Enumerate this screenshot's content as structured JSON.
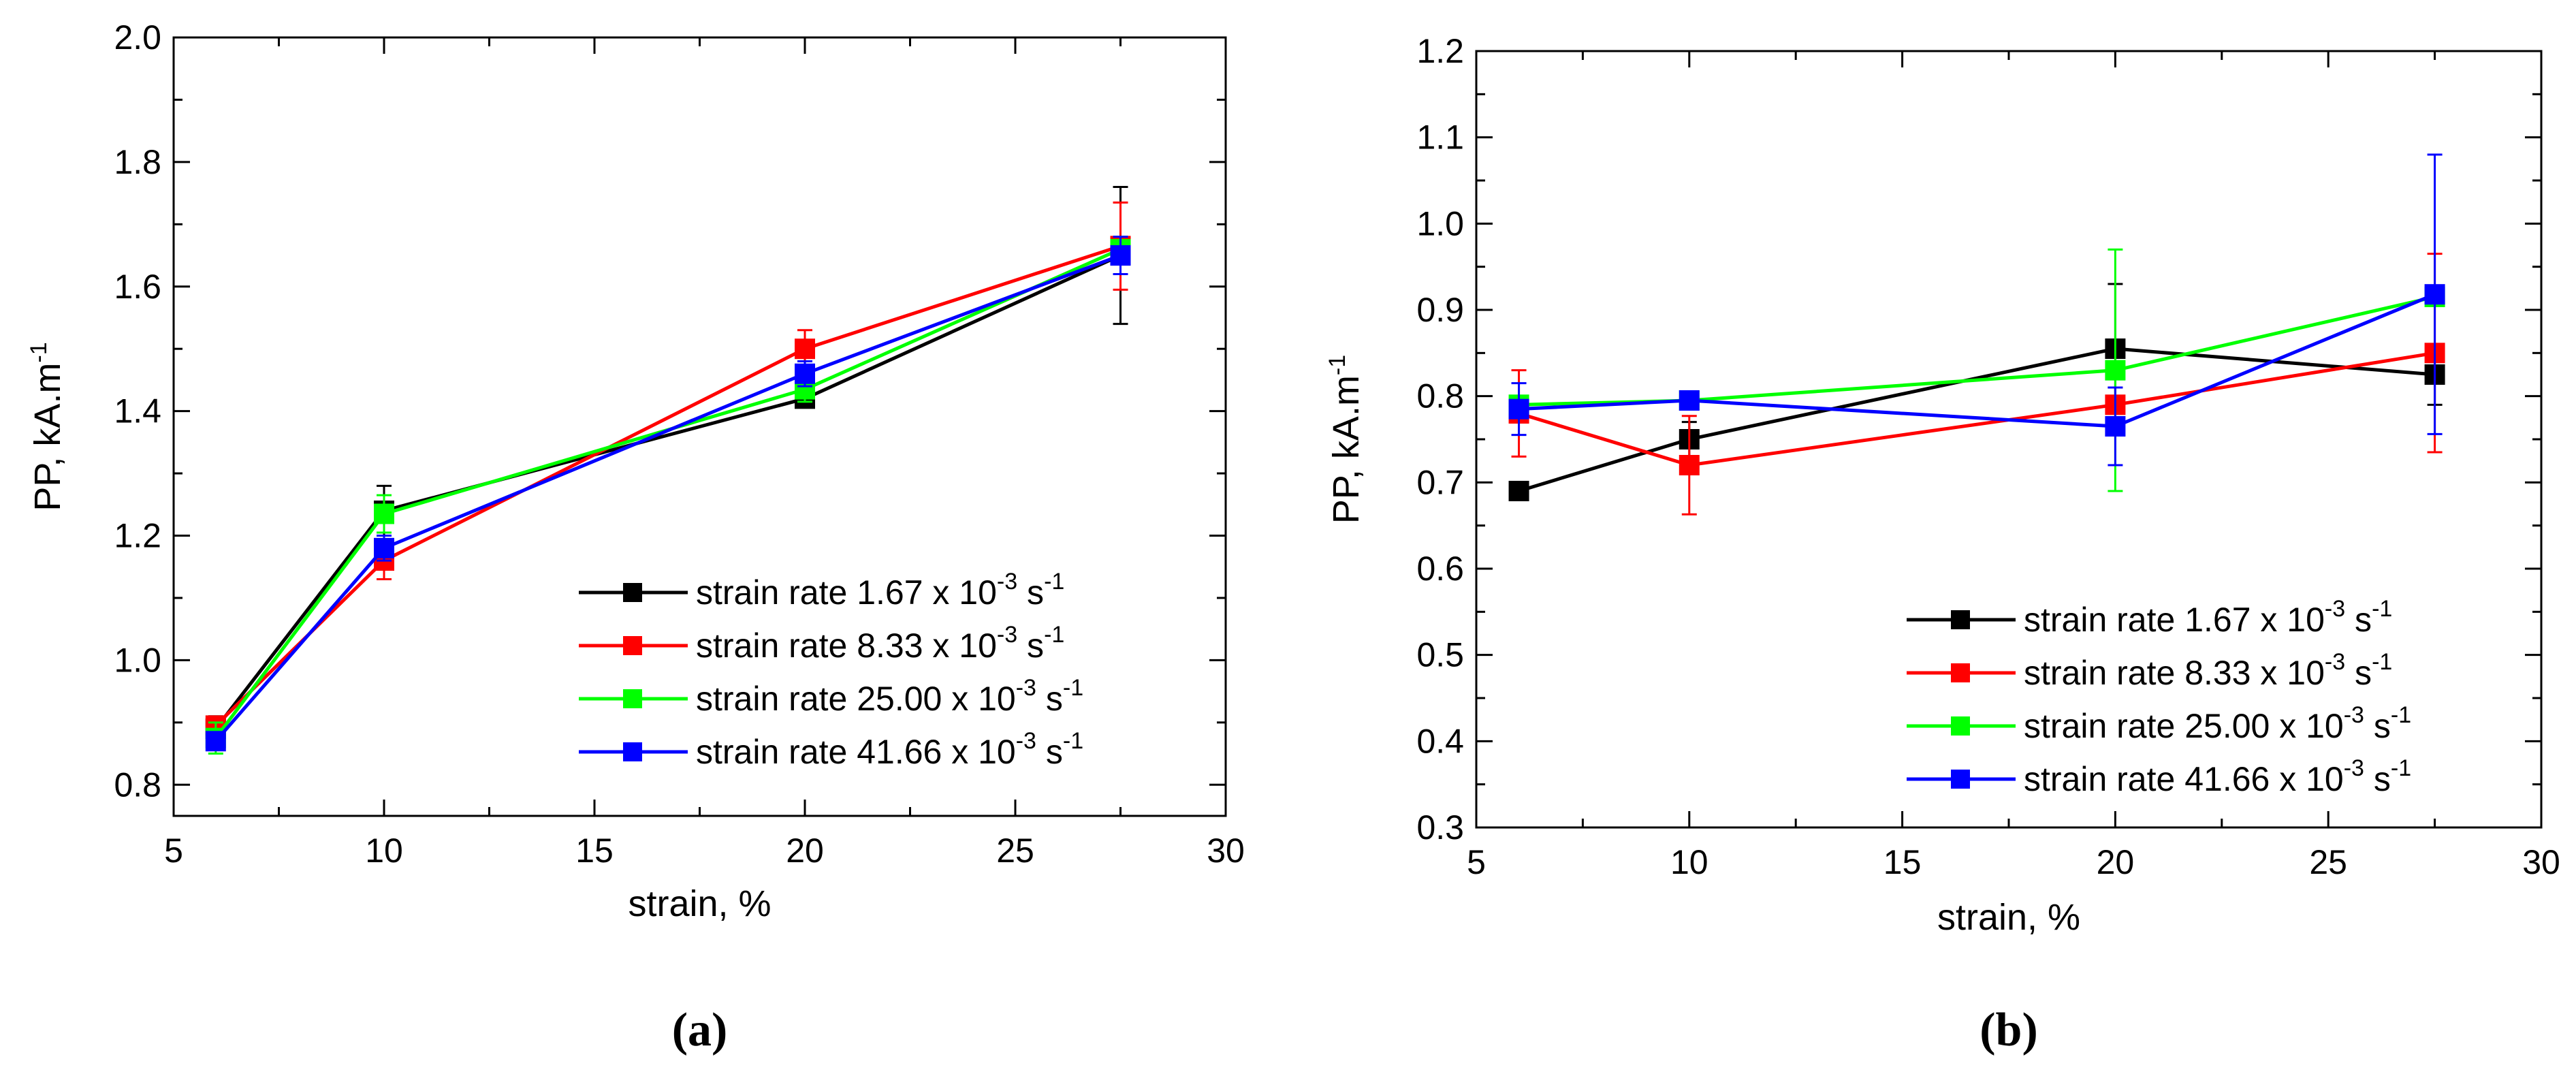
{
  "chart_data": [
    {
      "type": "line",
      "panel_label": "(a)",
      "xlabel": "strain, %",
      "ylabel_base": "PP, kA.m",
      "ylabel_sup": "-1",
      "xlim": [
        5,
        30
      ],
      "ylim": [
        0.75,
        2.0
      ],
      "xticks": [
        5,
        10,
        15,
        20,
        25,
        30
      ],
      "xtick_labels": [
        "5",
        "10",
        "15",
        "20",
        "25",
        "30"
      ],
      "yticks": [
        0.8,
        1.0,
        1.2,
        1.4,
        1.6,
        1.8,
        2.0
      ],
      "ytick_labels": [
        "0.8",
        "1.0",
        "1.2",
        "1.4",
        "1.6",
        "1.8",
        "2.0"
      ],
      "legend_position": "bottom-right",
      "x": [
        6,
        10,
        20,
        27.5
      ],
      "series": [
        {
          "name": "strain rate 1.67 x 10-3 s-1",
          "label_parts": [
            "strain rate 1.67 x 10",
            "-3",
            " s",
            "-1"
          ],
          "color": "#000000",
          "values": [
            0.89,
            1.24,
            1.42,
            1.65
          ],
          "errors": [
            0.02,
            0.04,
            0.01,
            0.11
          ]
        },
        {
          "name": "strain rate 8.33 x 10-3 s-1",
          "label_parts": [
            "strain rate 8.33 x 10",
            "-3",
            " s",
            "-1"
          ],
          "color": "#ff0000",
          "values": [
            0.895,
            1.16,
            1.5,
            1.665
          ],
          "errors": [
            0.01,
            0.03,
            0.03,
            0.07
          ]
        },
        {
          "name": "strain rate 25.00 x 10-3 s-1",
          "label_parts": [
            "strain rate 25.00 x 10",
            "-3",
            " s",
            "-1"
          ],
          "color": "#00ff00",
          "values": [
            0.875,
            1.235,
            1.435,
            1.66
          ],
          "errors": [
            0.025,
            0.03,
            0.02,
            0.02
          ]
        },
        {
          "name": "strain rate 41.66 x 10-3 s-1",
          "label_parts": [
            "strain rate 41.66 x 10",
            "-3",
            " s",
            "-1"
          ],
          "color": "#0000ff",
          "values": [
            0.87,
            1.18,
            1.46,
            1.65
          ],
          "errors": [
            0.01,
            0.02,
            0.02,
            0.03
          ]
        }
      ]
    },
    {
      "type": "line",
      "panel_label": "(b)",
      "xlabel": "strain, %",
      "ylabel_base": "PP, kA.m",
      "ylabel_sup": "-1",
      "xlim": [
        5,
        30
      ],
      "ylim": [
        0.3,
        1.2
      ],
      "xticks": [
        5,
        10,
        15,
        20,
        25,
        30
      ],
      "xtick_labels": [
        "5",
        "10",
        "15",
        "20",
        "25",
        "30"
      ],
      "yticks": [
        0.3,
        0.4,
        0.5,
        0.6,
        0.7,
        0.8,
        0.9,
        1.0,
        1.1,
        1.2
      ],
      "ytick_labels": [
        "0.3",
        "0.4",
        "0.5",
        "0.6",
        "0.7",
        "0.8",
        "0.9",
        "1.0",
        "1.1",
        "1.2"
      ],
      "legend_position": "bottom-right",
      "x": [
        6,
        10,
        20,
        27.5
      ],
      "series": [
        {
          "name": "strain rate 1.67 x 10-3 s-1",
          "label_parts": [
            "strain rate 1.67 x 10",
            "-3",
            " s",
            "-1"
          ],
          "color": "#000000",
          "values": [
            0.69,
            0.75,
            0.855,
            0.825
          ],
          "errors": [
            0.0,
            0.02,
            0.075,
            0.035
          ]
        },
        {
          "name": "strain rate 8.33 x 10-3 s-1",
          "label_parts": [
            "strain rate 8.33 x 10",
            "-3",
            " s",
            "-1"
          ],
          "color": "#ff0000",
          "values": [
            0.78,
            0.72,
            0.79,
            0.85
          ],
          "errors": [
            0.05,
            0.057,
            0.02,
            0.115
          ]
        },
        {
          "name": "strain rate 25.00 x 10-3 s-1",
          "label_parts": [
            "strain rate 25.00 x 10",
            "-3",
            " s",
            "-1"
          ],
          "color": "#00ff00",
          "values": [
            0.79,
            0.795,
            0.83,
            0.915
          ],
          "errors": [
            0.01,
            0.01,
            0.14,
            0.01
          ]
        },
        {
          "name": "strain rate 41.66 x 10-3 s-1",
          "label_parts": [
            "strain rate 41.66 x 10",
            "-3",
            " s",
            "-1"
          ],
          "color": "#0000ff",
          "values": [
            0.785,
            0.795,
            0.765,
            0.918
          ],
          "errors": [
            0.03,
            0.01,
            0.045,
            0.162
          ]
        }
      ]
    }
  ]
}
